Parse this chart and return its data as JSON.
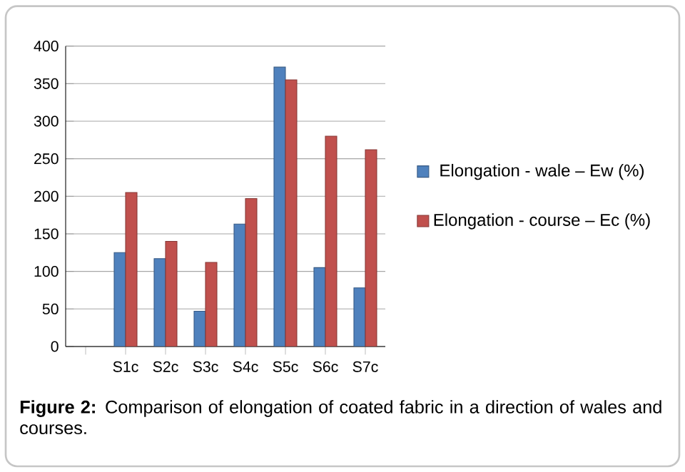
{
  "chart_data": {
    "type": "bar",
    "categories": [
      null,
      "S1c",
      "S2c",
      "S3c",
      "S4c",
      "S5c",
      "S6c",
      "S7c"
    ],
    "series": [
      {
        "name": "Elongation - wale – Ew (%)",
        "color": "#4f81bd",
        "values": [
          null,
          125,
          117,
          47,
          163,
          372,
          105,
          78
        ]
      },
      {
        "name": "Elongation - course – Ec (%)",
        "color": "#c0504d",
        "values": [
          null,
          205,
          140,
          112,
          197,
          355,
          280,
          262
        ]
      }
    ],
    "ylim": [
      0,
      400
    ],
    "yticks": [
      0,
      50,
      100,
      150,
      200,
      250,
      300,
      350,
      400
    ],
    "grid": "y",
    "legend": "right",
    "annotations": [
      "**Figure 2:** Comparison of elongation of coated fabric in a direction of wales and courses."
    ]
  }
}
